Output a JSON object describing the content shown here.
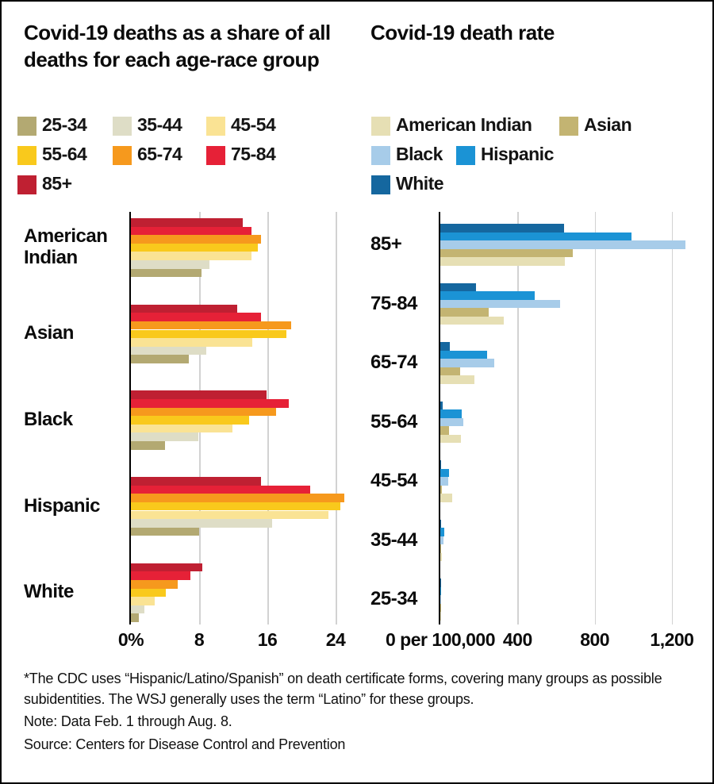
{
  "chart_data": [
    {
      "type": "bar",
      "orientation": "horizontal",
      "title": "Covid-19 deaths as a share of all deaths for each age-race group",
      "categories": [
        "American Indian",
        "Asian",
        "Black",
        "Hispanic",
        "White"
      ],
      "series": [
        {
          "name": "85+",
          "color": "#bf2032",
          "values": [
            13.1,
            12.5,
            15.9,
            15.3,
            8.4
          ]
        },
        {
          "name": "75-84",
          "color": "#e62137",
          "values": [
            14.1,
            15.3,
            18.5,
            21.0,
            7.0
          ]
        },
        {
          "name": "65-74",
          "color": "#f6991d",
          "values": [
            15.3,
            18.8,
            17.0,
            25.0,
            5.5
          ]
        },
        {
          "name": "55-64",
          "color": "#f9c91c",
          "values": [
            14.9,
            18.2,
            13.9,
            24.6,
            4.1
          ]
        },
        {
          "name": "45-54",
          "color": "#fae394",
          "values": [
            14.1,
            14.2,
            11.9,
            23.2,
            2.8
          ]
        },
        {
          "name": "35-44",
          "color": "#deddc6",
          "values": [
            9.2,
            8.8,
            7.9,
            16.6,
            1.6
          ]
        },
        {
          "name": "25-34",
          "color": "#b3a972",
          "values": [
            8.3,
            6.8,
            4.0,
            8.0,
            0.9
          ]
        }
      ],
      "unit": "percent of all deaths",
      "ticks": [
        {
          "value": 0,
          "label": "0%"
        },
        {
          "value": 8,
          "label": "8"
        },
        {
          "value": 16,
          "label": "16"
        },
        {
          "value": 24,
          "label": "24"
        }
      ],
      "xlim": [
        0,
        26.3
      ],
      "grid": true,
      "legend_position": "top",
      "bar_draw_order": "oldest age group on top within each race group"
    },
    {
      "type": "bar",
      "orientation": "horizontal",
      "title": "Covid-19 death rate",
      "categories": [
        "85+",
        "75-84",
        "65-74",
        "55-64",
        "45-54",
        "35-44",
        "25-34"
      ],
      "series": [
        {
          "name": "White",
          "color": "#15679f",
          "values": [
            643,
            185,
            51,
            14,
            5,
            2,
            1
          ]
        },
        {
          "name": "Hispanic",
          "color": "#1b93d5",
          "values": [
            990,
            490,
            242,
            113,
            45,
            20,
            5
          ]
        },
        {
          "name": "Black",
          "color": "#a7cce9",
          "values": [
            1270,
            620,
            279,
            120,
            40,
            15,
            4
          ]
        },
        {
          "name": "Asian",
          "color": "#c3b472",
          "values": [
            688,
            250,
            103,
            45,
            8,
            3,
            1
          ]
        },
        {
          "name": "American Indian",
          "color": "#e6dfb4",
          "values": [
            647,
            330,
            176,
            107,
            63,
            8,
            3
          ]
        }
      ],
      "unit": "deaths per 100,000",
      "ticks": [
        {
          "value": 0,
          "label": "0 per 100,000"
        },
        {
          "value": 400,
          "label": "400"
        },
        {
          "value": 800,
          "label": "800"
        },
        {
          "value": 1200,
          "label": "1,200"
        }
      ],
      "xlim": [
        0,
        1345
      ],
      "grid": true,
      "legend_position": "top",
      "bar_draw_order": "White on top within each age group"
    }
  ],
  "legends": {
    "age": [
      {
        "label": "25-34",
        "color": "#b3a972"
      },
      {
        "label": "35-44",
        "color": "#deddc6"
      },
      {
        "label": "45-54",
        "color": "#fae394"
      },
      {
        "label": "55-64",
        "color": "#f9c91c"
      },
      {
        "label": "65-74",
        "color": "#f6991d"
      },
      {
        "label": "75-84",
        "color": "#e62137"
      },
      {
        "label": "85+",
        "color": "#bf2032"
      }
    ],
    "race": [
      {
        "label": "American Indian",
        "color": "#e6dfb4"
      },
      {
        "label": "Asian",
        "color": "#c3b472"
      },
      {
        "label": "Black",
        "color": "#a7cce9"
      },
      {
        "label": "Hispanic",
        "color": "#1b93d5"
      },
      {
        "label": "White",
        "color": "#15679f"
      }
    ]
  },
  "footnotes": [
    "*The CDC uses “Hispanic/Latino/Spanish” on death certificate forms, covering many groups as possible subidentities. The WSJ generally uses the term “Latino” for these groups.",
    "Note: Data Feb. 1 through Aug. 8.",
    "Source: Centers for Disease Control and Prevention"
  ]
}
